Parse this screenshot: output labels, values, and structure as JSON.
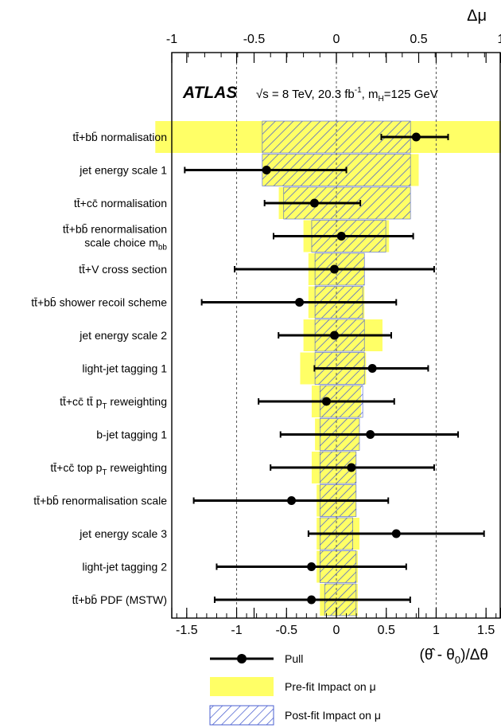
{
  "chart_data": {
    "type": "scatter",
    "header": {
      "experiment": "ATLAS",
      "conditions": "√s = 8 TeV, 20.3 fb",
      "lumi_sup": "-1",
      "mass_prefix": ", m",
      "mass_sub": "H",
      "mass_suffix": "=125 GeV"
    },
    "top_axis": {
      "label": "Δμ",
      "range": [
        -1,
        1
      ],
      "ticks": [
        -1,
        -0.5,
        0,
        0.5,
        1
      ],
      "tick_labels": [
        "-1",
        "-0.5",
        "0",
        "0.5",
        "1"
      ]
    },
    "bottom_axis": {
      "label": "(θ̂ - θ",
      "label_sub": "0",
      "label_tail": ")/Δθ",
      "range": [
        -1.65,
        1.65
      ],
      "ticks": [
        -1.5,
        -1,
        -0.5,
        0,
        0.5,
        1,
        1.5
      ],
      "tick_labels": [
        "-1.5",
        "-1",
        "-0.5",
        "0",
        "0.5",
        "1",
        "1.5"
      ]
    },
    "grid": "dashed vertical lines at pull -1, 0, +1",
    "colors": {
      "prefit": "#ffff66",
      "postfit": "#4a5fd0",
      "pull": "#000000"
    },
    "parameters": [
      {
        "label": "tt̄+bb̄ normalisation",
        "pull": 0.8,
        "err_lo": 0.45,
        "err_hi": 1.12,
        "prefit": [
          -1.1,
          1.45
        ],
        "postfit": [
          -0.45,
          0.45
        ]
      },
      {
        "label": "jet energy scale 1",
        "pull": -0.7,
        "err_lo": -1.52,
        "err_hi": 0.1,
        "prefit": [
          -0.45,
          0.5
        ],
        "postfit": [
          -0.45,
          0.45
        ]
      },
      {
        "label": "tt̄+cc̄ normalisation",
        "pull": -0.22,
        "err_lo": -0.72,
        "err_hi": 0.24,
        "prefit": [
          -0.35,
          0.45
        ],
        "postfit": [
          -0.32,
          0.45
        ]
      },
      {
        "label": "tt̄+bb̄ renormalisation",
        "label2": "scale choice m",
        "label2_sub": "bb",
        "pull": 0.05,
        "err_lo": -0.63,
        "err_hi": 0.77,
        "prefit": [
          -0.2,
          0.32
        ],
        "postfit": [
          -0.15,
          0.3
        ]
      },
      {
        "label": "tt̄+V cross section",
        "pull": -0.02,
        "err_lo": -1.02,
        "err_hi": 0.98,
        "prefit": [
          -0.17,
          0.17
        ],
        "postfit": [
          -0.13,
          0.17
        ]
      },
      {
        "label": "tt̄+bb̄ shower recoil scheme",
        "pull": -0.37,
        "err_lo": -1.35,
        "err_hi": 0.6,
        "prefit": [
          -0.17,
          0.17
        ],
        "postfit": [
          -0.13,
          0.16
        ]
      },
      {
        "label": "jet energy scale 2",
        "pull": -0.02,
        "err_lo": -0.58,
        "err_hi": 0.55,
        "prefit": [
          -0.2,
          0.28
        ],
        "postfit": [
          -0.13,
          0.17
        ]
      },
      {
        "label": "light-jet tagging 1",
        "pull": 0.36,
        "err_lo": -0.22,
        "err_hi": 0.92,
        "prefit": [
          -0.22,
          0.18
        ],
        "postfit": [
          -0.13,
          0.17
        ]
      },
      {
        "label": "tt̄+cc̄ tt̄ p",
        "label_sub": "T",
        "label_tail": " reweighting",
        "pull": -0.1,
        "err_lo": -0.78,
        "err_hi": 0.58,
        "prefit": [
          -0.15,
          0.15
        ],
        "postfit": [
          -0.1,
          0.16
        ]
      },
      {
        "label": "b-jet tagging 1",
        "pull": 0.34,
        "err_lo": -0.56,
        "err_hi": 1.22,
        "prefit": [
          -0.13,
          0.14
        ],
        "postfit": [
          -0.1,
          0.14
        ]
      },
      {
        "label": "tt̄+cc̄ top p",
        "label_sub": "T",
        "label_tail": " reweighting",
        "pull": 0.15,
        "err_lo": -0.66,
        "err_hi": 0.98,
        "prefit": [
          -0.15,
          0.12
        ],
        "postfit": [
          -0.1,
          0.12
        ]
      },
      {
        "label": "tt̄+bb̄ renormalisation scale",
        "pull": -0.45,
        "err_lo": -1.43,
        "err_hi": 0.52,
        "prefit": [
          -0.12,
          0.12
        ],
        "postfit": [
          -0.1,
          0.12
        ]
      },
      {
        "label": "jet energy scale 3",
        "pull": 0.6,
        "err_lo": -0.28,
        "err_hi": 1.48,
        "prefit": [
          -0.12,
          0.14
        ],
        "postfit": [
          -0.1,
          0.1
        ]
      },
      {
        "label": "light-jet tagging 2",
        "pull": -0.25,
        "err_lo": -1.2,
        "err_hi": 0.7,
        "prefit": [
          -0.12,
          0.13
        ],
        "postfit": [
          -0.1,
          0.12
        ]
      },
      {
        "label": "tt̄+bb̄ PDF (MSTW)",
        "pull": -0.25,
        "err_lo": -1.22,
        "err_hi": 0.74,
        "prefit": [
          -0.1,
          0.13
        ],
        "postfit": [
          -0.07,
          0.12
        ]
      }
    ],
    "legend": {
      "placement": "bottom",
      "entries": [
        "Pull",
        "Pre-fit Impact on μ",
        "Post-fit Impact on μ"
      ]
    }
  }
}
